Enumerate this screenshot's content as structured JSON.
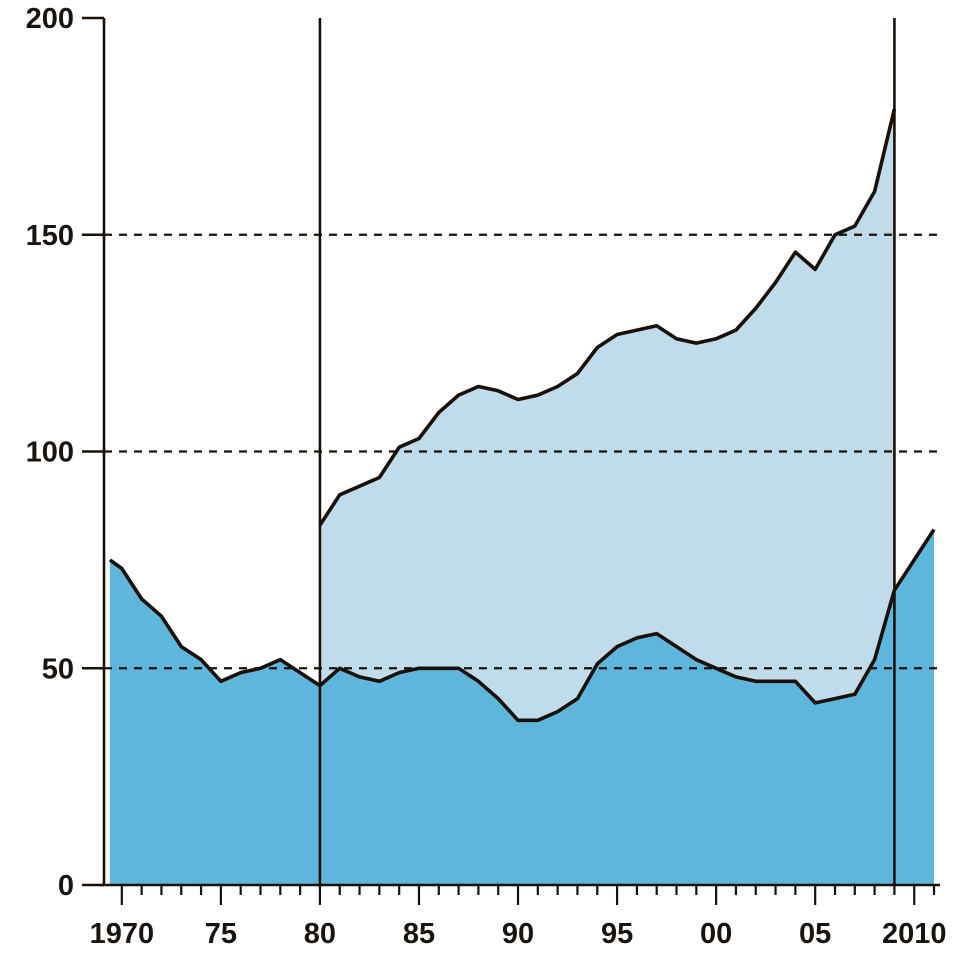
{
  "chart_data": {
    "type": "area",
    "title": "",
    "xlabel": "",
    "ylabel": "",
    "xlim": [
      1969.1,
      2011.2
    ],
    "ylim": [
      0,
      200
    ],
    "grid": {
      "y_dashed_at": [
        50,
        100,
        150
      ]
    },
    "colors": {
      "lower_fill": "#5fb6dc",
      "upper_fill": "#c0dbea",
      "line": "#1a1008",
      "axis": "#1a1008"
    },
    "vertical_markers": [
      1980,
      2009
    ],
    "x_ticks": [
      {
        "value": 1970,
        "label": "1970"
      },
      {
        "value": 1975,
        "label": "75"
      },
      {
        "value": 1980,
        "label": "80"
      },
      {
        "value": 1985,
        "label": "85"
      },
      {
        "value": 1990,
        "label": "90"
      },
      {
        "value": 1995,
        "label": "95"
      },
      {
        "value": 2000,
        "label": "00"
      },
      {
        "value": 2005,
        "label": "05"
      },
      {
        "value": 2010,
        "label": "2010"
      }
    ],
    "y_ticks": [
      {
        "value": 0,
        "label": "0"
      },
      {
        "value": 50,
        "label": "50"
      },
      {
        "value": 100,
        "label": "100"
      },
      {
        "value": 150,
        "label": "150"
      },
      {
        "value": 200,
        "label": "200"
      }
    ],
    "series": [
      {
        "x": [
          1969.4,
          1970,
          1971,
          1972,
          1973,
          1974,
          1975,
          1976,
          1977,
          1978,
          1979,
          1980,
          1981,
          1982,
          1983,
          1984,
          1985,
          1986,
          1987,
          1988,
          1989,
          1990,
          1991,
          1992,
          1993,
          1994,
          1995,
          1996,
          1997,
          1998,
          1999,
          2000,
          2001,
          2002,
          2003,
          2004,
          2005,
          2006,
          2007,
          2008,
          2009,
          2010,
          2011
        ],
        "values": [
          75,
          73,
          66,
          62,
          55,
          52,
          47,
          49,
          50,
          52,
          49,
          46,
          50,
          48,
          47,
          49,
          50,
          50,
          50,
          47,
          43,
          38,
          38,
          40,
          43,
          51,
          55,
          57,
          58,
          55,
          52,
          50,
          48,
          47,
          47,
          47,
          42,
          43,
          44,
          52,
          68,
          75,
          82
        ]
      },
      {
        "x": [
          1980,
          1981,
          1982,
          1983,
          1984,
          1985,
          1986,
          1987,
          1988,
          1989,
          1990,
          1991,
          1992,
          1993,
          1994,
          1995,
          1996,
          1997,
          1998,
          1999,
          2000,
          2001,
          2002,
          2003,
          2004,
          2005,
          2006,
          2007,
          2008,
          2009
        ],
        "values": [
          83,
          90,
          92,
          94,
          101,
          103,
          109,
          113,
          115,
          114,
          112,
          113,
          115,
          118,
          124,
          127,
          128,
          129,
          126,
          125,
          126,
          128,
          133,
          139,
          146,
          142,
          150,
          152,
          160,
          179
        ]
      }
    ]
  }
}
